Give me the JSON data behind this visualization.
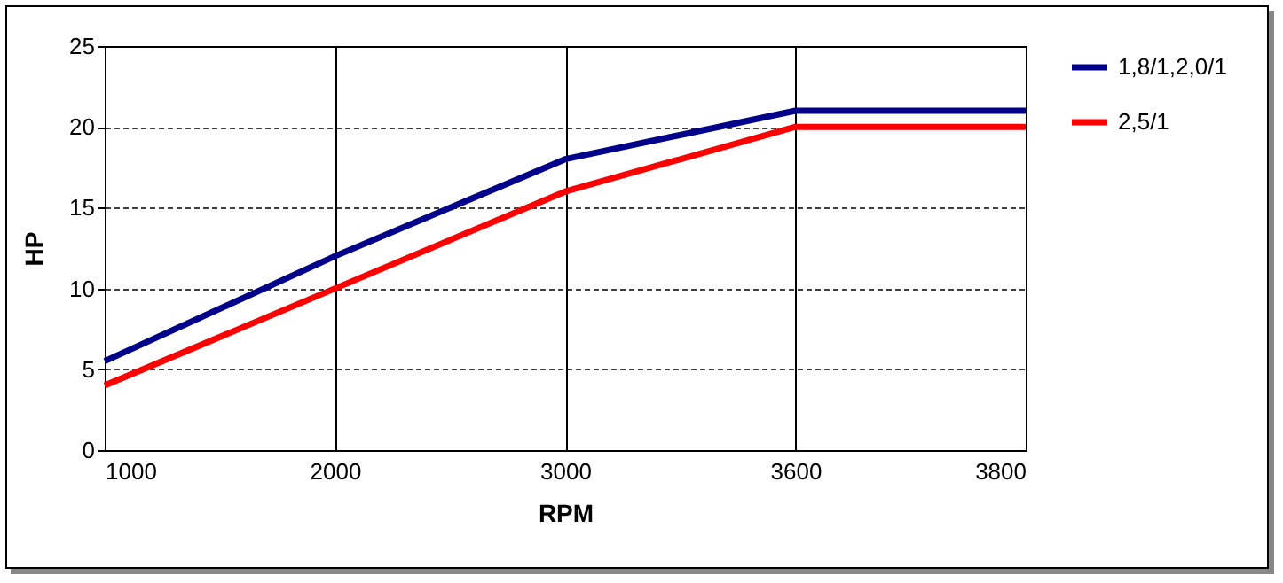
{
  "chart_data": {
    "type": "line",
    "xlabel": "RPM",
    "ylabel": "HP",
    "categories": [
      "1000",
      "2000",
      "3000",
      "3600",
      "3800"
    ],
    "series": [
      {
        "name": "1,8/1,2,0/1",
        "color": "#00008b",
        "values": [
          5.5,
          12,
          18,
          21,
          21
        ]
      },
      {
        "name": "2,5/1",
        "color": "#ff0000",
        "values": [
          4,
          10,
          16,
          20,
          20
        ]
      }
    ],
    "ylim": [
      0,
      25
    ],
    "yticks": [
      0,
      5,
      10,
      15,
      20,
      25
    ],
    "grid": true,
    "legend": "right",
    "marker": "none",
    "line_style": "solid"
  }
}
